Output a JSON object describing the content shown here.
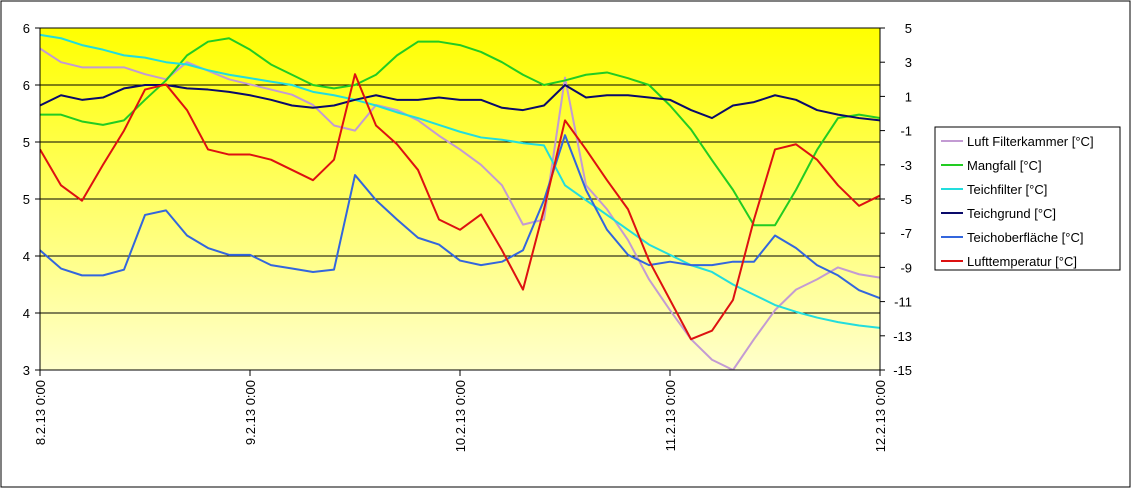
{
  "chart_data": {
    "type": "line",
    "x": [
      0,
      0.1,
      0.2,
      0.3,
      0.4,
      0.5,
      0.6,
      0.7,
      0.8,
      0.9,
      1.0,
      1.1,
      1.2,
      1.3,
      1.4,
      1.5,
      1.6,
      1.7,
      1.8,
      1.9,
      2.0,
      2.1,
      2.2,
      2.3,
      2.4,
      2.5,
      2.6,
      2.7,
      2.8,
      2.9,
      3.0,
      3.1,
      3.2,
      3.3,
      3.4,
      3.5,
      3.6,
      3.7,
      3.8,
      3.9,
      4.0
    ],
    "xlim": [
      0,
      4
    ],
    "xticks": [
      {
        "value": 0,
        "label": "8.2.13 0:00"
      },
      {
        "value": 1,
        "label": "9.2.13 0:00"
      },
      {
        "value": 2,
        "label": "10.2.13 0:00"
      },
      {
        "value": 3,
        "label": "11.2.13 0:00"
      },
      {
        "value": 4,
        "label": "12.2.13 0:00"
      }
    ],
    "ylim": [
      3,
      6
    ],
    "yticks": [
      3,
      {
        "value": 3.5,
        "label": "4"
      },
      4,
      {
        "value": 4.5,
        "label": "5"
      },
      5,
      {
        "value": 5.5,
        "label": "6"
      },
      6
    ],
    "y2lim": [
      -15,
      5
    ],
    "y2ticks": [
      -15,
      -13,
      -11,
      -9,
      -7,
      -5,
      -3,
      -1,
      1,
      3,
      5
    ],
    "grid": true,
    "series": [
      {
        "name": "Luft Filterkammer [°C]",
        "color": "#c39bd3",
        "axis": "y2",
        "values": [
          3.8,
          3.0,
          2.7,
          2.7,
          2.7,
          2.3,
          2.0,
          3.0,
          2.5,
          2.0,
          1.7,
          1.4,
          1.1,
          0.5,
          -0.7,
          -1.0,
          0.5,
          0.2,
          -0.4,
          -1.3,
          -2.1,
          -3.0,
          -4.2,
          -6.5,
          -6.2,
          2.1,
          -4.2,
          -5.6,
          -7.4,
          -9.7,
          -11.5,
          -13.2,
          -14.4,
          -15,
          -13.2,
          -11.5,
          -10.3,
          -9.7,
          -9.0,
          -9.4,
          -9.6
        ]
      },
      {
        "name": "Mangfall [°C]",
        "color": "#22cc22",
        "values": [
          5.24,
          5.24,
          5.18,
          5.15,
          5.19,
          5.37,
          5.54,
          5.76,
          5.88,
          5.91,
          5.81,
          5.68,
          5.59,
          5.5,
          5.47,
          5.5,
          5.59,
          5.76,
          5.88,
          5.88,
          5.85,
          5.79,
          5.7,
          5.59,
          5.5,
          5.54,
          5.59,
          5.61,
          5.56,
          5.5,
          5.32,
          5.11,
          4.84,
          4.58,
          4.27,
          4.27,
          4.58,
          4.93,
          5.21,
          5.24,
          5.21
        ]
      },
      {
        "name": "Teichfilter [°C]",
        "color": "#22dddd",
        "values": [
          5.94,
          5.91,
          5.85,
          5.81,
          5.76,
          5.74,
          5.7,
          5.68,
          5.63,
          5.59,
          5.56,
          5.53,
          5.5,
          5.44,
          5.41,
          5.37,
          5.32,
          5.26,
          5.21,
          5.15,
          5.09,
          5.04,
          5.02,
          4.99,
          4.97,
          4.62,
          4.49,
          4.36,
          4.23,
          4.1,
          4.01,
          3.92,
          3.86,
          3.75,
          3.66,
          3.57,
          3.51,
          3.46,
          3.42,
          3.39,
          3.37
        ]
      },
      {
        "name": "Teichgrund [°C]",
        "color": "#0a0a6a",
        "values": [
          5.32,
          5.41,
          5.37,
          5.39,
          5.47,
          5.5,
          5.5,
          5.47,
          5.46,
          5.44,
          5.41,
          5.37,
          5.32,
          5.3,
          5.32,
          5.37,
          5.41,
          5.37,
          5.37,
          5.39,
          5.37,
          5.37,
          5.3,
          5.28,
          5.32,
          5.5,
          5.39,
          5.41,
          5.41,
          5.39,
          5.37,
          5.28,
          5.21,
          5.32,
          5.35,
          5.41,
          5.37,
          5.28,
          5.24,
          5.21,
          5.19
        ]
      },
      {
        "name": "Teichoberfläche [°C]",
        "color": "#3366dd",
        "values": [
          4.05,
          3.89,
          3.83,
          3.83,
          3.88,
          4.36,
          4.4,
          4.18,
          4.07,
          4.01,
          4.01,
          3.92,
          3.89,
          3.86,
          3.88,
          4.71,
          4.49,
          4.32,
          4.16,
          4.1,
          3.96,
          3.92,
          3.95,
          4.05,
          4.49,
          5.06,
          4.58,
          4.23,
          4.01,
          3.92,
          3.95,
          3.92,
          3.92,
          3.95,
          3.95,
          4.18,
          4.07,
          3.92,
          3.83,
          3.7,
          3.63
        ]
      },
      {
        "name": "Lufttemperatur [°C]",
        "color": "#dd1111",
        "axis": "y2",
        "values": [
          -2.1,
          -4.2,
          -5.1,
          -3.0,
          -1.0,
          1.4,
          1.7,
          0.2,
          -2.1,
          -2.4,
          -2.4,
          -2.7,
          -3.3,
          -3.9,
          -2.7,
          2.3,
          -0.7,
          -1.8,
          -3.3,
          -6.2,
          -6.8,
          -5.9,
          -8.0,
          -10.3,
          -5.6,
          -0.4,
          -2.1,
          -3.9,
          -5.6,
          -8.6,
          -10.9,
          -13.2,
          -12.7,
          -10.9,
          -6.2,
          -2.1,
          -1.8,
          -2.7,
          -4.2,
          -5.4,
          -4.8
        ]
      }
    ]
  }
}
